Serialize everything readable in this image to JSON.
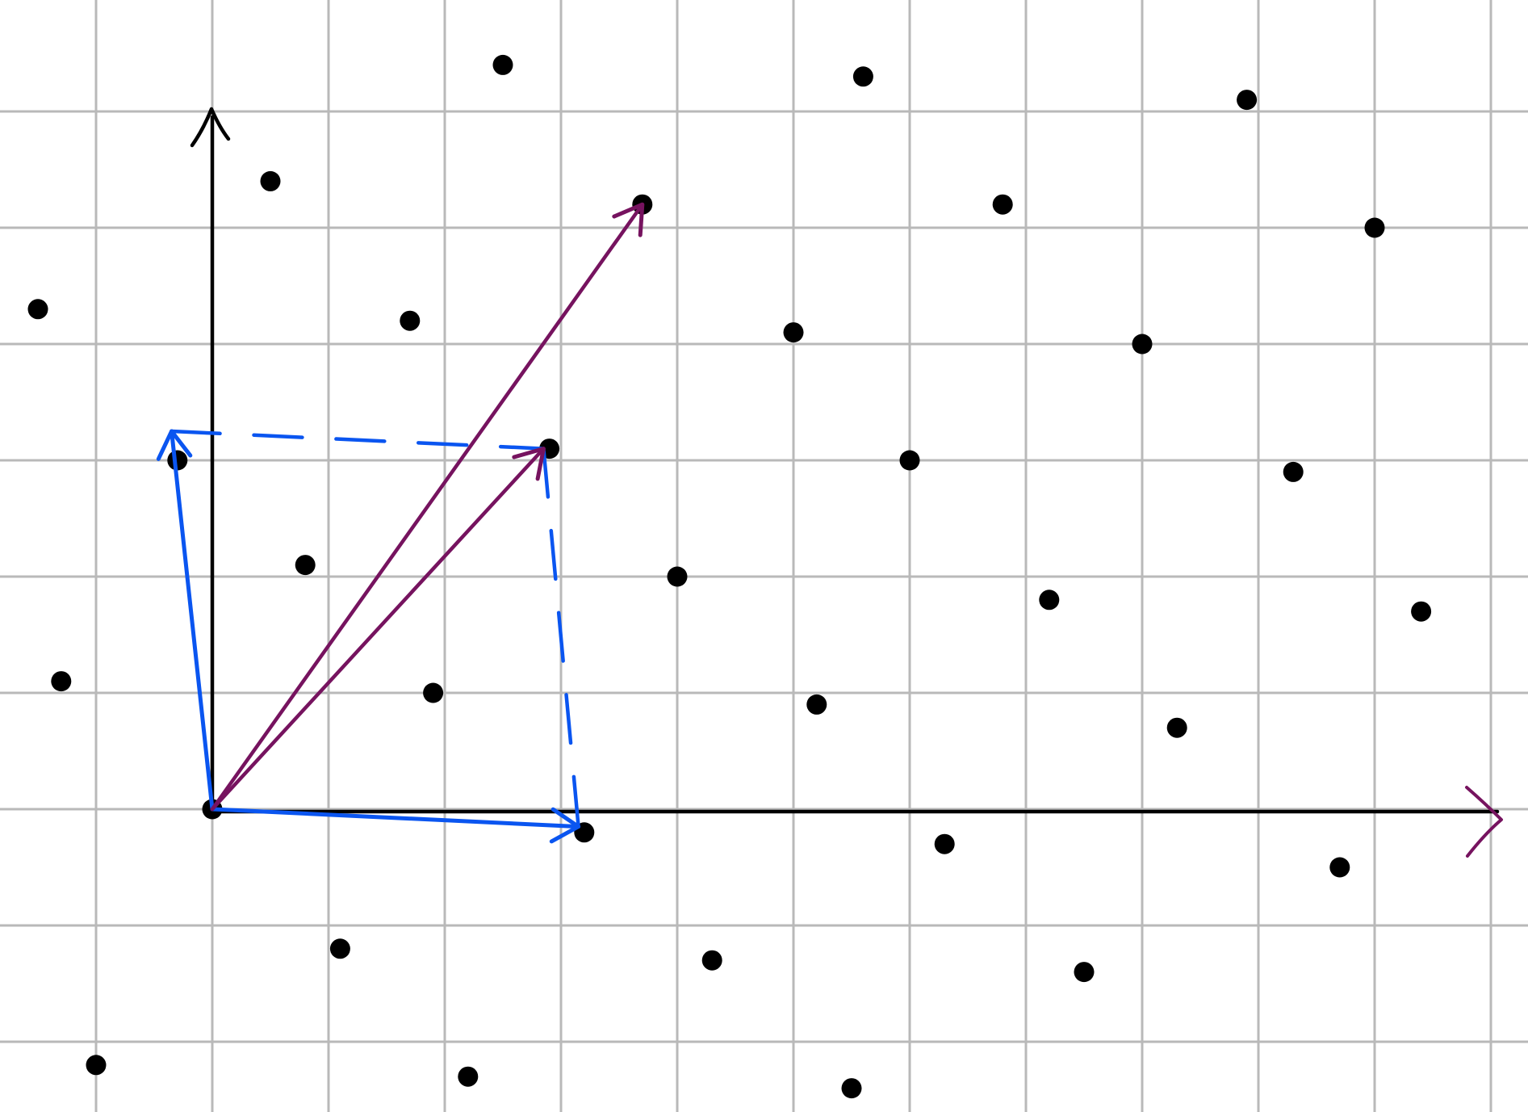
{
  "colors": {
    "background": "#ffffff",
    "grid": "#b9b9b9",
    "axis": "#000000",
    "lattice_point": "#000000",
    "basis_vector": "#0a55f0",
    "reduced_vector": "#76135f"
  },
  "diagram": {
    "description_type": "lattice basis diagram",
    "axes": {
      "x_arrow": true,
      "y_arrow": true
    },
    "lattice_points": [
      [
        -1.5,
        4.3
      ],
      [
        -1.3,
        1.1
      ],
      [
        -1.0,
        -2.2
      ],
      [
        -0.3,
        3.0
      ],
      [
        0,
        0
      ],
      [
        0.5,
        5.4
      ],
      [
        0.8,
        2.1
      ],
      [
        1.1,
        -1.2
      ],
      [
        1.7,
        4.2
      ],
      [
        1.9,
        1.0
      ],
      [
        2.2,
        -2.3
      ],
      [
        2.5,
        6.4
      ],
      [
        2.9,
        3.1
      ],
      [
        3.2,
        -0.2
      ],
      [
        3.7,
        5.2
      ],
      [
        4.0,
        2.0
      ],
      [
        4.3,
        -1.3
      ],
      [
        5.0,
        4.1
      ],
      [
        5.2,
        0.9
      ],
      [
        5.5,
        -2.4
      ],
      [
        5.6,
        6.3
      ],
      [
        6.0,
        3.0
      ],
      [
        6.3,
        -0.3
      ],
      [
        6.8,
        5.2
      ],
      [
        7.2,
        1.8
      ],
      [
        7.5,
        -1.4
      ],
      [
        8.0,
        4.0
      ],
      [
        8.3,
        0.7
      ],
      [
        8.9,
        6.1
      ],
      [
        9.3,
        2.9
      ],
      [
        9.7,
        -0.5
      ],
      [
        10.0,
        5.0
      ],
      [
        10.4,
        1.7
      ]
    ],
    "basis_vectors": [
      {
        "role": "basis",
        "from": [
          0,
          0
        ],
        "to": [
          3.15,
          -0.15
        ]
      },
      {
        "role": "basis",
        "from": [
          0,
          0
        ],
        "to": [
          -0.35,
          3.25
        ]
      }
    ],
    "dashed_lines": [
      {
        "from": [
          -0.35,
          3.25
        ],
        "to": [
          2.85,
          3.1
        ]
      },
      {
        "from": [
          2.85,
          3.1
        ],
        "to": [
          3.15,
          -0.15
        ]
      }
    ],
    "reduced_vectors": [
      {
        "role": "sum",
        "from": [
          0,
          0
        ],
        "to": [
          2.85,
          3.1
        ]
      },
      {
        "role": "long",
        "from": [
          0,
          0
        ],
        "to": [
          3.7,
          5.2
        ]
      }
    ]
  }
}
